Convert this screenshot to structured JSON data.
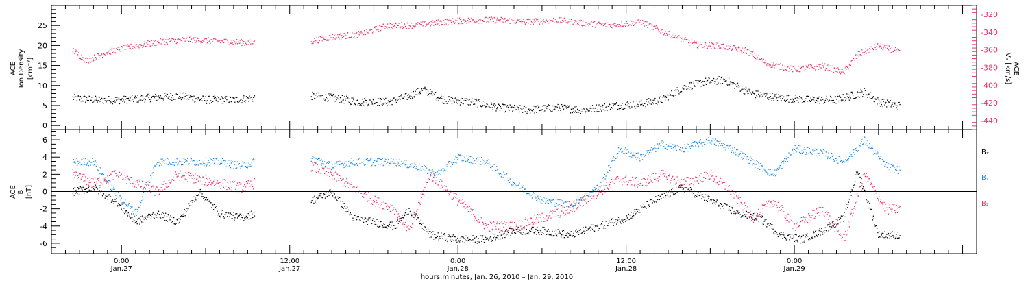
{
  "colors": {
    "black": "#000000",
    "pink": "#e8336a",
    "blue": "#1e88e0"
  },
  "chart_data": [
    {
      "type": "scatter",
      "panel": "top",
      "ylabel_left": [
        "ACE",
        "Ion Density",
        "[cm⁻³]"
      ],
      "ylabel_right": [
        "ACE",
        "Vₓ [km/s]"
      ],
      "ylim_left": [
        -1,
        30
      ],
      "yticks_left": [
        0,
        5,
        10,
        15,
        20,
        25
      ],
      "ylim_right": [
        -450,
        -310
      ],
      "yticks_right": [
        -440,
        -420,
        -400,
        -380,
        -360,
        -340,
        -320
      ],
      "series": [
        {
          "axis": "left",
          "color": "black",
          "x": [
            -3.5,
            -2,
            0,
            2,
            4,
            6,
            8,
            9.5,
            13.5,
            15,
            17,
            19,
            20.5,
            21.5,
            23,
            25,
            27,
            29,
            31,
            33,
            35,
            37,
            38.5,
            40,
            41.5,
            43,
            45,
            47,
            49,
            51,
            53,
            54,
            55.5
          ],
          "y": [
            7,
            6.5,
            6.5,
            7,
            7.5,
            6.5,
            6.5,
            7,
            7.5,
            7,
            6,
            6,
            7.5,
            9,
            6.5,
            6,
            4.5,
            4,
            4.5,
            4,
            5,
            5.5,
            6.5,
            9.5,
            11,
            11.5,
            8,
            7,
            6.5,
            6.5,
            8.5,
            6,
            5
          ]
        },
        {
          "axis": "right",
          "color": "pink",
          "x": [
            -3.5,
            -2.5,
            -1,
            1,
            3,
            5,
            7,
            9.5,
            13.5,
            15,
            17,
            19,
            21,
            23,
            25,
            27,
            29,
            31,
            33,
            35,
            37,
            39,
            41,
            43,
            44.5,
            46,
            48,
            50,
            51.5,
            52.5,
            54,
            55.5
          ],
          "y": [
            -360,
            -372,
            -362,
            -355,
            -350,
            -348,
            -350,
            -352,
            -350,
            -345,
            -342,
            -332,
            -332,
            -328,
            -326,
            -326,
            -328,
            -326,
            -330,
            -332,
            -328,
            -342,
            -354,
            -356,
            -360,
            -375,
            -382,
            -378,
            -385,
            -365,
            -355,
            -362
          ]
        }
      ]
    },
    {
      "type": "scatter",
      "panel": "bottom",
      "ylabel_left": [
        "ACE",
        "B",
        "[nT]"
      ],
      "ylim": [
        -7.2,
        7.2
      ],
      "yticks": [
        -6,
        -4,
        -2,
        0,
        2,
        4,
        6
      ],
      "legend": [
        "Bₓ",
        "Bᵧ",
        "B₂"
      ],
      "series": [
        {
          "name": "Bₓ",
          "color": "black",
          "x": [
            -3.5,
            -2,
            -0.5,
            1,
            2.5,
            4,
            5.5,
            7,
            8.5,
            9.5,
            13.5,
            15,
            16.5,
            18,
            19.5,
            20.5,
            22,
            24,
            26,
            28,
            30,
            32,
            34,
            36,
            38,
            40,
            42,
            44,
            45.5,
            47,
            48.5,
            50,
            51.5,
            52.5,
            54,
            55.5
          ],
          "y": [
            0,
            0.5,
            -1,
            -3.5,
            -2.5,
            -3.5,
            0,
            -2.5,
            -3,
            -2.5,
            -1,
            0,
            -3,
            -3.5,
            -4,
            -2,
            -5,
            -5.5,
            -5.5,
            -4.5,
            -4.5,
            -5,
            -4,
            -3,
            -1,
            0.5,
            -1,
            -2.5,
            -3,
            -5,
            -5.5,
            -4.5,
            -3,
            2.5,
            -5,
            -5
          ]
        },
        {
          "name": "Bᵧ",
          "color": "blue",
          "x": [
            -3.5,
            -2,
            -0.5,
            1,
            2.5,
            4,
            5.5,
            7,
            8.5,
            9.5,
            13.5,
            15,
            16.5,
            18,
            19.5,
            21,
            22.5,
            24,
            26,
            28,
            30,
            32,
            34,
            35.5,
            37,
            38.5,
            40,
            42,
            43.5,
            45,
            46.5,
            48,
            50,
            51.5,
            53,
            54.5,
            55.5
          ],
          "y": [
            3.5,
            3.5,
            0,
            -2.5,
            3.5,
            3.5,
            3.5,
            3.5,
            3,
            3.5,
            4,
            3,
            3.5,
            3.5,
            3.5,
            3,
            2,
            4,
            3.5,
            1,
            -1,
            -1.5,
            0.5,
            5,
            4,
            5.5,
            5,
            6,
            5,
            3.5,
            2,
            5,
            4.5,
            3.5,
            6,
            3,
            2.5
          ]
        },
        {
          "name": "B₂",
          "color": "pink",
          "x": [
            -3.5,
            -2,
            -0.5,
            1,
            2.5,
            4,
            5.5,
            7,
            8.5,
            9.5,
            13.5,
            15,
            16.5,
            18,
            19.5,
            20.5,
            22,
            24,
            26,
            28,
            30,
            32,
            34,
            35.5,
            37,
            38.5,
            40,
            42,
            43.5,
            45,
            46.5,
            48,
            50,
            51.5,
            53,
            54.5,
            55.5
          ],
          "y": [
            2,
            1,
            2,
            1,
            0,
            2,
            1.5,
            1,
            0.5,
            1,
            3,
            2,
            0.5,
            -1,
            -2,
            -4.5,
            2,
            -1,
            -4,
            -4,
            -3,
            -2,
            0,
            1.5,
            1,
            2,
            1,
            2,
            0,
            -3,
            -1,
            -4,
            -2,
            -5.5,
            2,
            -2,
            -2
          ]
        }
      ]
    }
  ],
  "xaxis": {
    "range_hours": [
      -5,
      61
    ],
    "major_ticks": [
      0,
      12,
      24,
      36,
      48
    ],
    "tick_labels": [
      {
        "time": "0:00",
        "date": "Jan.27"
      },
      {
        "time": "12:00",
        "date": "Jan.27"
      },
      {
        "time": "0:00",
        "date": "Jan.28"
      },
      {
        "time": "12:00",
        "date": "Jan.28"
      },
      {
        "time": "0:00",
        "date": "Jan.29"
      }
    ],
    "title": "hours:minutes, Jan. 26, 2010 – Jan. 29, 2010"
  }
}
